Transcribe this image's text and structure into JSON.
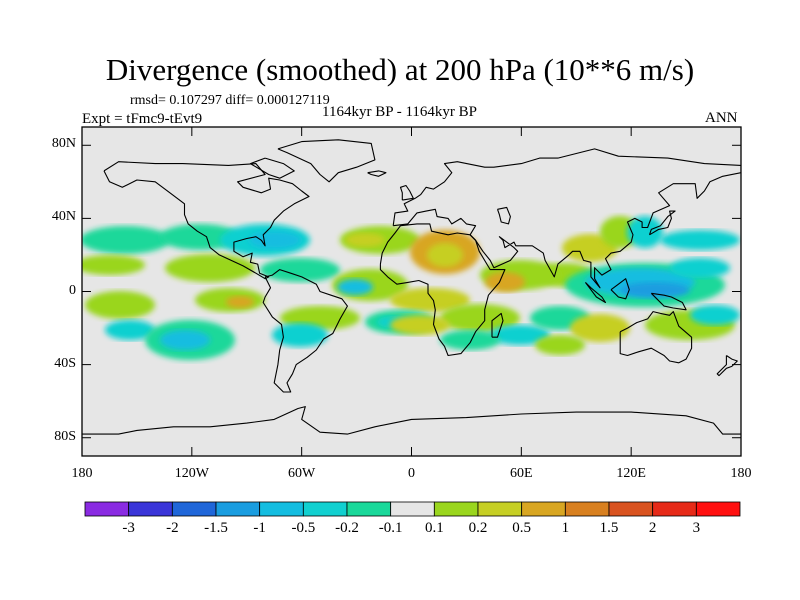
{
  "title": "Divergence (smoothed) at 200 hPa (10**6 m/s)",
  "stats": "rmsd= 0.107297  diff= 0.000127119",
  "experiment": "Expt = tFmc9-tEvt9",
  "period": "1164kyr BP - 1164kyr BP",
  "season": "ANN",
  "map": {
    "projection": "cylindrical-equidistant",
    "lon_range": [
      -180,
      180
    ],
    "lat_range": [
      -90,
      90
    ],
    "ocean_color": "#e6e6e6",
    "coast_color": "#000000"
  },
  "y_ticks": [
    "80N",
    "40N",
    "0",
    "40S",
    "80S"
  ],
  "x_ticks": [
    "180",
    "120W",
    "60W",
    "0",
    "60E",
    "120E",
    "180"
  ],
  "colorbar": {
    "labels": [
      "-3",
      "-2",
      "-1.5",
      "-1",
      "-0.5",
      "-0.2",
      "-0.1",
      "0.1",
      "0.2",
      "0.5",
      "1",
      "1.5",
      "2",
      "3"
    ],
    "colors": [
      "#8a2be2",
      "#3a35d8",
      "#1f66d9",
      "#1a9de0",
      "#14bde0",
      "#11d0d0",
      "#1ad89a",
      "#e6e6e6",
      "#9ad61e",
      "#c6cf24",
      "#d8a622",
      "#d88020",
      "#d95320",
      "#e62a18",
      "#ff1010"
    ]
  }
}
